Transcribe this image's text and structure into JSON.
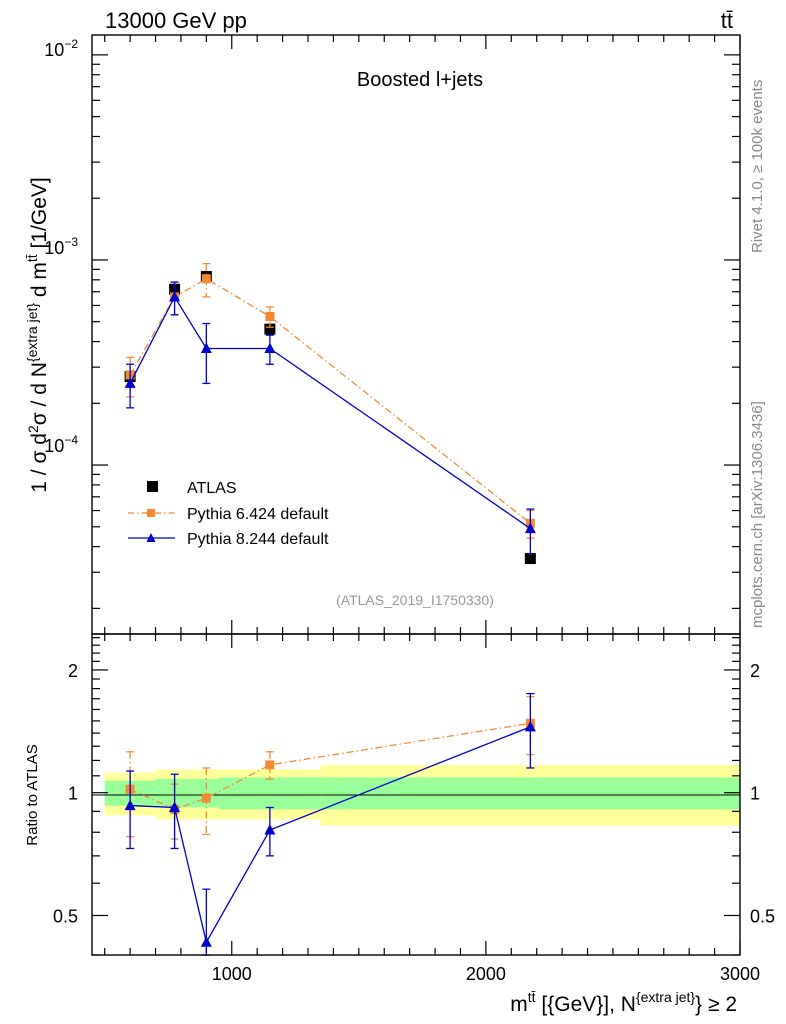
{
  "header": {
    "left": "13000 GeV pp",
    "right": "tt̄"
  },
  "side": {
    "rivet": "Rivet 4.1.0, ≥ 100k events",
    "mcplots": "mcplots.cern.ch [arXiv:1306.3436]"
  },
  "colors": {
    "atlas": "#000000",
    "pythia6": "#f28a33",
    "pythia8": "#0000cc",
    "band_inner": "#99ff99",
    "band_outer": "#ffff99"
  },
  "chart_data": {
    "type": "scatter",
    "title": "Boosted l+jets",
    "analysis_id": "(ATLAS_2019_I1750330)",
    "main": {
      "ylabel": "1 / σ d²σ / d N^{extra jet} d m^{tt̄} [1/GeV]",
      "yscale": "log",
      "ylim": [
        1.5e-05,
        0.0125
      ],
      "ytick_labels": {
        "1e-2": "10^{-2}",
        "1e-3": "10^{-3}",
        "1e-4": "10^{-4}"
      }
    },
    "ratio": {
      "ylabel": "Ratio to ATLAS",
      "yscale": "log",
      "ylim": [
        0.4,
        2.45
      ],
      "yticks": [
        0.5,
        1,
        2
      ],
      "ytick_labels": [
        "0.5",
        "1",
        "2"
      ]
    },
    "xlabel": "m^{tt̄} [{GeV}], N^{extra jet} ≥ 2",
    "xlim": [
      450,
      3000
    ],
    "xticks": [
      1000,
      2000,
      3000
    ],
    "xtick_labels": [
      "1000",
      "2000",
      "3000"
    ],
    "bin_edges": [
      500,
      700,
      850,
      950,
      1350,
      3000
    ],
    "x": [
      600,
      775,
      900,
      1150,
      2175
    ],
    "series": [
      {
        "name": "ATLAS",
        "style": "square",
        "values": [
          0.00027,
          0.00072,
          0.00083,
          0.00046,
          3.5e-05
        ],
        "band_inner_rel": [
          0.07,
          0.08,
          0.08,
          0.09,
          0.09
        ],
        "band_outer_rel": [
          0.12,
          0.14,
          0.14,
          0.14,
          0.17
        ]
      },
      {
        "name": "Pythia 6.424 default",
        "style": "dashdot-square",
        "values": [
          0.000275,
          0.00066,
          0.00081,
          0.00053,
          5.2e-05
        ],
        "err_up": [
          6e-05,
          0.00012,
          0.00015,
          6e-05,
          8e-06
        ],
        "err_down": [
          6e-05,
          0.00012,
          0.00015,
          6e-05,
          8e-06
        ],
        "ratio": [
          1.02,
          0.91,
          0.97,
          1.17,
          1.48
        ],
        "ratio_err": [
          0.24,
          0.14,
          0.18,
          0.09,
          0.24
        ]
      },
      {
        "name": "Pythia 8.244 default",
        "style": "solid-triangle",
        "values": [
          0.00025,
          0.00066,
          0.00037,
          0.00037,
          4.9e-05
        ],
        "err_up": [
          6e-05,
          0.00012,
          0.00012,
          6e-05,
          1.2e-05
        ],
        "err_down": [
          6e-05,
          0.00012,
          0.00012,
          6e-05,
          1.2e-05
        ],
        "ratio": [
          0.93,
          0.92,
          0.43,
          0.81,
          1.45
        ],
        "ratio_err": [
          0.2,
          0.19,
          0.15,
          0.11,
          0.3
        ]
      }
    ],
    "legend_position": "lower-left"
  }
}
